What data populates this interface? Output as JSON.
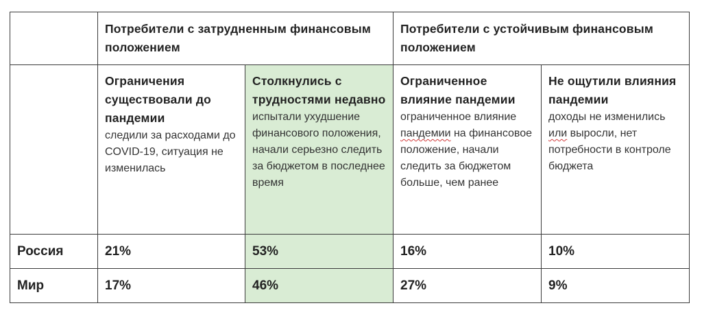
{
  "header": {
    "group1": "Потребители с затрудненным финансовым положением",
    "group2": "Потребители с устойчивым финансовым положением"
  },
  "columns": [
    {
      "title": "Ограничения существовали до пандемии",
      "desc": "следили за расходами до COVID-19, ситуация не изменилась"
    },
    {
      "title": "Столкнулись с трудностями недавно",
      "desc": "испытали ухудшение финансового положения, начали серьезно следить за бюджетом в последнее время"
    },
    {
      "title": "Ограниченное влияние пандемии",
      "desc_pre": "ограниченное влияние ",
      "desc_mark": "пандемии",
      "desc_post": " на финансовое положение, начали следить за бюджетом больше, чем ранее"
    },
    {
      "title": "Не ощутили влияния пандемии",
      "desc_pre": "доходы не изменились ",
      "desc_mark": "или",
      "desc_post": " выросли, нет потребности в контроле бюджета"
    }
  ],
  "rows": [
    {
      "label": "Россия",
      "values": [
        "21%",
        "53%",
        "16%",
        "10%"
      ]
    },
    {
      "label": "Мир",
      "values": [
        "17%",
        "46%",
        "27%",
        "9%"
      ]
    }
  ],
  "colors": {
    "highlight": "#d9ecd4",
    "border": "#3a3a3a",
    "spellcheck": "#d23b3b"
  }
}
